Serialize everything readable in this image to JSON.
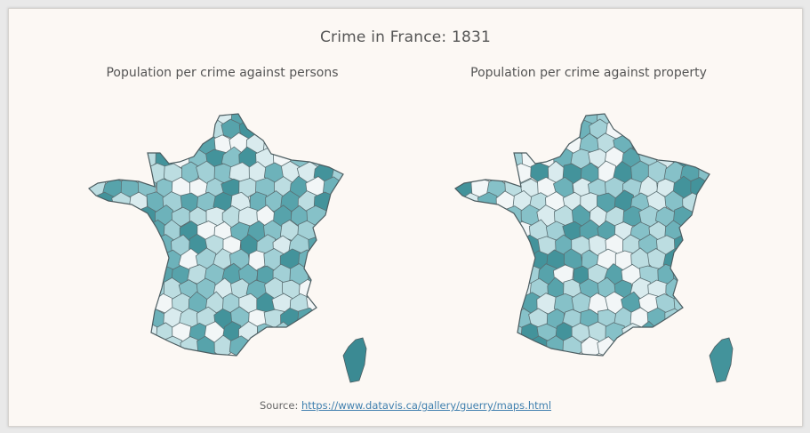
{
  "title": "Crime in France: 1831",
  "left_map": {
    "subtitle": "Population per crime against persons",
    "palette": [
      "#f2f6f7",
      "#d9ebee",
      "#bcdde1",
      "#a2d0d6",
      "#86c1c8",
      "#6db2ba",
      "#57a3ab",
      "#43939b"
    ],
    "featured": {
      "corsica": "#3b8a93"
    }
  },
  "right_map": {
    "subtitle": "Population per crime against property",
    "palette": [
      "#f2f6f7",
      "#d9ebee",
      "#bcdde1",
      "#a2d0d6",
      "#86c1c8",
      "#6db2ba",
      "#57a3ab",
      "#43939b"
    ],
    "featured": {
      "corsica": "#43939b"
    }
  },
  "footer": {
    "source_label": "Source:",
    "source_link": "https://www.datavis.ca/gallery/guerry/maps.html"
  }
}
